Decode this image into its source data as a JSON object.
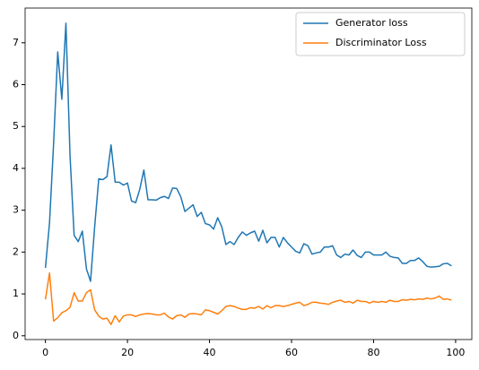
{
  "chart_data": {
    "type": "line",
    "x": [
      0,
      1,
      2,
      3,
      4,
      5,
      6,
      7,
      8,
      9,
      10,
      11,
      12,
      13,
      14,
      15,
      16,
      17,
      18,
      19,
      20,
      21,
      22,
      23,
      24,
      25,
      26,
      27,
      28,
      29,
      30,
      31,
      32,
      33,
      34,
      35,
      36,
      37,
      38,
      39,
      40,
      41,
      42,
      43,
      44,
      45,
      46,
      47,
      48,
      49,
      50,
      51,
      52,
      53,
      54,
      55,
      56,
      57,
      58,
      59,
      60,
      61,
      62,
      63,
      64,
      65,
      66,
      67,
      68,
      69,
      70,
      71,
      72,
      73,
      74,
      75,
      76,
      77,
      78,
      79,
      80,
      81,
      82,
      83,
      84,
      85,
      86,
      87,
      88,
      89,
      90,
      91,
      92,
      93,
      94,
      95,
      96,
      97,
      98,
      99
    ],
    "series": [
      {
        "name": "Generator loss",
        "color": "#1f77b4",
        "values": [
          1.62,
          2.7,
          4.6,
          6.78,
          5.65,
          7.47,
          4.3,
          2.4,
          2.25,
          2.5,
          1.6,
          1.3,
          2.6,
          3.75,
          3.73,
          3.8,
          4.56,
          3.67,
          3.67,
          3.6,
          3.65,
          3.22,
          3.18,
          3.5,
          3.96,
          3.25,
          3.25,
          3.24,
          3.3,
          3.33,
          3.28,
          3.53,
          3.52,
          3.32,
          2.97,
          3.05,
          3.13,
          2.85,
          2.95,
          2.68,
          2.65,
          2.55,
          2.82,
          2.6,
          2.18,
          2.25,
          2.18,
          2.35,
          2.48,
          2.4,
          2.46,
          2.5,
          2.26,
          2.52,
          2.22,
          2.35,
          2.35,
          2.12,
          2.35,
          2.22,
          2.12,
          2.02,
          1.98,
          2.2,
          2.15,
          1.95,
          1.98,
          2.0,
          2.12,
          2.12,
          2.15,
          1.93,
          1.87,
          1.95,
          1.93,
          2.05,
          1.92,
          1.87,
          2.0,
          2.0,
          1.93,
          1.93,
          1.93,
          2.0,
          1.9,
          1.87,
          1.86,
          1.73,
          1.73,
          1.8,
          1.8,
          1.86,
          1.77,
          1.66,
          1.64,
          1.65,
          1.66,
          1.72,
          1.73,
          1.67
        ]
      },
      {
        "name": "Discriminator Loss",
        "color": "#ff7f0e",
        "values": [
          0.87,
          1.5,
          0.35,
          0.43,
          0.55,
          0.6,
          0.68,
          1.03,
          0.83,
          0.83,
          1.03,
          1.1,
          0.62,
          0.47,
          0.4,
          0.42,
          0.27,
          0.48,
          0.33,
          0.47,
          0.5,
          0.5,
          0.46,
          0.5,
          0.52,
          0.53,
          0.52,
          0.5,
          0.5,
          0.54,
          0.45,
          0.4,
          0.48,
          0.5,
          0.44,
          0.52,
          0.53,
          0.52,
          0.5,
          0.62,
          0.6,
          0.56,
          0.52,
          0.6,
          0.7,
          0.72,
          0.7,
          0.66,
          0.63,
          0.63,
          0.67,
          0.66,
          0.7,
          0.64,
          0.72,
          0.67,
          0.72,
          0.72,
          0.7,
          0.72,
          0.75,
          0.78,
          0.8,
          0.72,
          0.75,
          0.8,
          0.8,
          0.78,
          0.77,
          0.75,
          0.8,
          0.83,
          0.85,
          0.8,
          0.82,
          0.78,
          0.85,
          0.82,
          0.82,
          0.78,
          0.82,
          0.8,
          0.82,
          0.8,
          0.85,
          0.82,
          0.82,
          0.86,
          0.85,
          0.87,
          0.86,
          0.88,
          0.87,
          0.9,
          0.88,
          0.9,
          0.95,
          0.87,
          0.88,
          0.85
        ]
      }
    ],
    "xlim": [
      -4.95,
      103.95
    ],
    "xticks": [
      0,
      20,
      40,
      60,
      80,
      100
    ],
    "ylim": [
      -0.09,
      7.83
    ],
    "yticks": [
      0,
      1,
      2,
      3,
      4,
      5,
      6,
      7
    ],
    "legend": "upper right"
  }
}
